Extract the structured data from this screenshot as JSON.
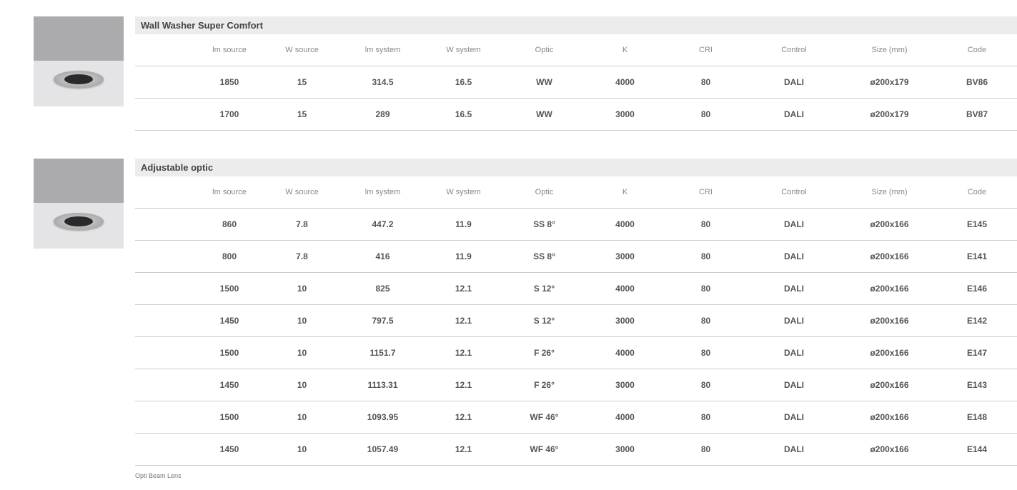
{
  "columns": [
    "lm source",
    "W source",
    "lm system",
    "W system",
    "Optic",
    "K",
    "CRI",
    "Control",
    "Size (mm)",
    "Code"
  ],
  "sections": [
    {
      "title": "Wall Washer Super Comfort",
      "rows": [
        [
          "1850",
          "15",
          "314.5",
          "16.5",
          "WW",
          "4000",
          "80",
          "DALI",
          "ø200x179",
          "BV86"
        ],
        [
          "1700",
          "15",
          "289",
          "16.5",
          "WW",
          "3000",
          "80",
          "DALI",
          "ø200x179",
          "BV87"
        ]
      ]
    },
    {
      "title": "Adjustable optic",
      "rows": [
        [
          "860",
          "7.8",
          "447.2",
          "11.9",
          "SS 8°",
          "4000",
          "80",
          "DALI",
          "ø200x166",
          "E145"
        ],
        [
          "800",
          "7.8",
          "416",
          "11.9",
          "SS 8°",
          "3000",
          "80",
          "DALI",
          "ø200x166",
          "E141"
        ],
        [
          "1500",
          "10",
          "825",
          "12.1",
          "S 12°",
          "4000",
          "80",
          "DALI",
          "ø200x166",
          "E146"
        ],
        [
          "1450",
          "10",
          "797.5",
          "12.1",
          "S 12°",
          "3000",
          "80",
          "DALI",
          "ø200x166",
          "E142"
        ],
        [
          "1500",
          "10",
          "1151.7",
          "12.1",
          "F 26°",
          "4000",
          "80",
          "DALI",
          "ø200x166",
          "E147"
        ],
        [
          "1450",
          "10",
          "1113.31",
          "12.1",
          "F 26°",
          "3000",
          "80",
          "DALI",
          "ø200x166",
          "E143"
        ],
        [
          "1500",
          "10",
          "1093.95",
          "12.1",
          "WF 46°",
          "4000",
          "80",
          "DALI",
          "ø200x166",
          "E148"
        ],
        [
          "1450",
          "10",
          "1057.49",
          "12.1",
          "WF 46°",
          "3000",
          "80",
          "DALI",
          "ø200x166",
          "E144"
        ]
      ]
    }
  ],
  "footnote": "Opti Beam Lens"
}
